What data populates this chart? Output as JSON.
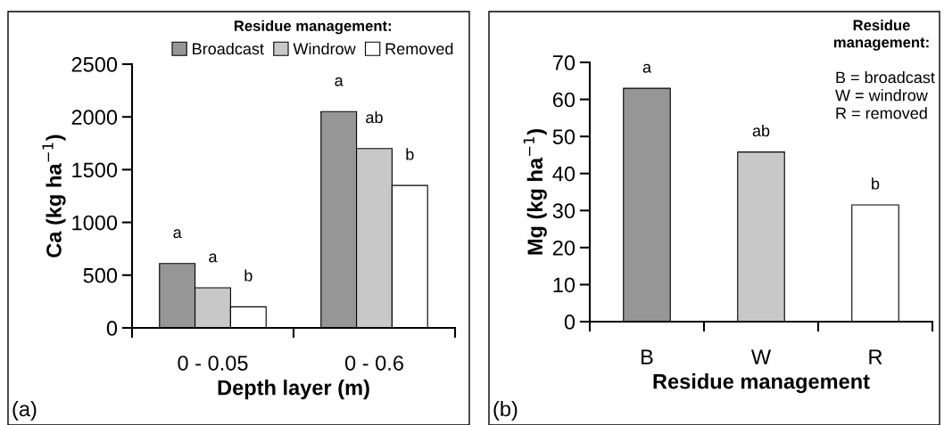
{
  "chart_data": [
    {
      "type": "bar",
      "categories": [
        "0 - 0.05",
        "0 - 0.6"
      ],
      "xlabel": "Depth layer (m)",
      "ylabel": "Ca (kg ha$^{−1}$)",
      "ylim": [
        0,
        2500
      ],
      "yticks": [
        0,
        500,
        1000,
        1500,
        2000,
        2500
      ],
      "legend": "top",
      "legend_title": "Residue management:",
      "grid": false,
      "annotations": [
        "(a)"
      ],
      "series": [
        {
          "name": "Broadcast",
          "color": "#969696",
          "values": [
            610,
            2050
          ],
          "value_labels": [
            "a",
            "a"
          ]
        },
        {
          "name": "Windrow",
          "color": "#c8c8c8",
          "values": [
            380,
            1700
          ],
          "value_labels": [
            "a",
            "ab"
          ]
        },
        {
          "name": "Removed",
          "color": "#ffffff",
          "values": [
            200,
            1350
          ],
          "value_labels": [
            "b",
            "b"
          ]
        }
      ]
    },
    {
      "type": "bar",
      "categories": [
        "B",
        "W",
        "R"
      ],
      "xlabel": "Residue management",
      "ylabel": "Mg (kg ha$^{−1}$)",
      "ylim": [
        0,
        70
      ],
      "yticks": [
        0,
        10,
        20,
        30,
        40,
        50,
        60,
        70
      ],
      "grid": false,
      "values": [
        63,
        45.8,
        31.5
      ],
      "colors": [
        "#969696",
        "#c8c8c8",
        "#ffffff"
      ],
      "value_labels": [
        "a",
        "ab",
        "b"
      ],
      "annotations": [
        "(b)",
        "Residue\nmanagement:",
        "B = broadcast\nW = windrow\nR = removed"
      ]
    }
  ]
}
